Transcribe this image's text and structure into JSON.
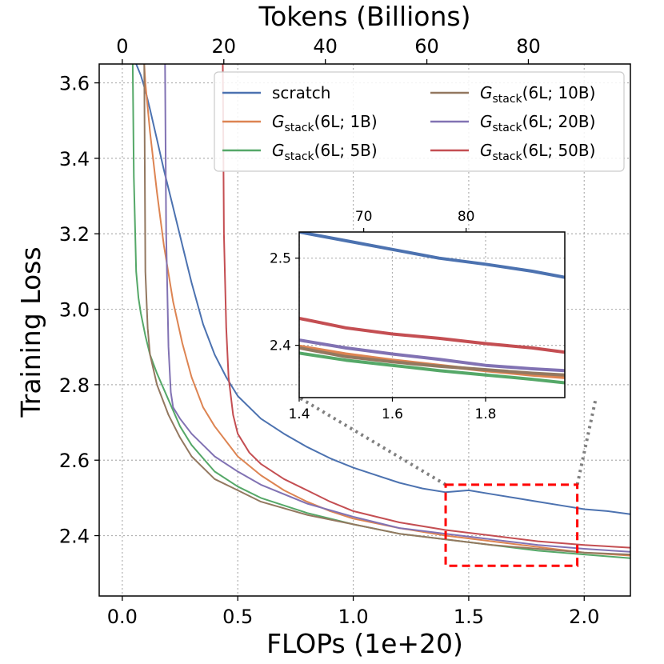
{
  "chart_data": {
    "type": "line",
    "xlabel": "FLOPs (1e+20)",
    "x2label": "Tokens (Billions)",
    "ylabel": "Training Loss",
    "xlim": [
      -0.1,
      2.2
    ],
    "ylim": [
      2.24,
      3.65
    ],
    "x_ticks": [
      0.0,
      0.5,
      1.0,
      1.5,
      2.0
    ],
    "x_tick_labels": [
      "0.0",
      "0.5",
      "1.0",
      "1.5",
      "2.0"
    ],
    "y_ticks": [
      2.4,
      2.6,
      2.8,
      3.0,
      3.2,
      3.4,
      3.6
    ],
    "y_tick_labels": [
      "2.4",
      "2.6",
      "2.8",
      "3.0",
      "3.2",
      "3.4",
      "3.6"
    ],
    "tokens_per_flop_unit": 45.5,
    "top_ticks": [
      0,
      20,
      40,
      60,
      80
    ],
    "top_tick_labels": [
      "0",
      "20",
      "40",
      "60",
      "80"
    ],
    "grid": true,
    "legend_position": "top-right",
    "series": [
      {
        "name": "scratch",
        "label_main": "scratch",
        "label_sub": "",
        "label_arg": "",
        "color": "#4c72b0",
        "x": [
          0.06,
          0.08,
          0.1,
          0.12,
          0.15,
          0.18,
          0.22,
          0.26,
          0.3,
          0.35,
          0.4,
          0.45,
          0.5,
          0.6,
          0.7,
          0.8,
          0.9,
          1.0,
          1.1,
          1.2,
          1.3,
          1.4,
          1.5,
          1.6,
          1.7,
          1.8,
          1.9,
          2.0,
          2.1,
          2.2
        ],
        "y": [
          3.65,
          3.62,
          3.58,
          3.53,
          3.45,
          3.37,
          3.27,
          3.17,
          3.07,
          2.96,
          2.88,
          2.82,
          2.77,
          2.71,
          2.67,
          2.635,
          2.605,
          2.58,
          2.56,
          2.54,
          2.525,
          2.515,
          2.52,
          2.51,
          2.5,
          2.49,
          2.48,
          2.47,
          2.465,
          2.457
        ]
      },
      {
        "name": "G_stack(6L;1B)",
        "label_main": "G",
        "label_sub": "stack",
        "label_arg": "(6L; 1B)",
        "color": "#dd8452",
        "x": [
          0.095,
          0.1,
          0.12,
          0.15,
          0.18,
          0.22,
          0.26,
          0.3,
          0.35,
          0.4,
          0.5,
          0.6,
          0.7,
          0.8,
          0.9,
          1.0,
          1.2,
          1.4,
          1.6,
          1.8,
          2.0,
          2.2
        ],
        "y": [
          3.65,
          3.6,
          3.47,
          3.31,
          3.17,
          3.02,
          2.91,
          2.82,
          2.74,
          2.69,
          2.61,
          2.56,
          2.52,
          2.49,
          2.465,
          2.445,
          2.42,
          2.4,
          2.385,
          2.37,
          2.355,
          2.347
        ]
      },
      {
        "name": "G_stack(6L;5B)",
        "label_main": "G",
        "label_sub": "stack",
        "label_arg": "(6L; 5B)",
        "color": "#55a868",
        "x": [
          0.045,
          0.05,
          0.06,
          0.07,
          0.08,
          0.1,
          0.12,
          0.15,
          0.2,
          0.25,
          0.3,
          0.4,
          0.5,
          0.6,
          0.8,
          1.0,
          1.2,
          1.4,
          1.6,
          1.8,
          2.0,
          2.2
        ],
        "y": [
          3.65,
          3.35,
          3.1,
          3.03,
          2.99,
          2.93,
          2.88,
          2.83,
          2.76,
          2.69,
          2.64,
          2.57,
          2.53,
          2.5,
          2.46,
          2.43,
          2.405,
          2.39,
          2.375,
          2.36,
          2.35,
          2.34
        ]
      },
      {
        "name": "G_stack(6L;10B)",
        "label_main": "G",
        "label_sub": "stack",
        "label_arg": "(6L; 10B)",
        "color": "#937860",
        "x": [
          0.095,
          0.1,
          0.11,
          0.12,
          0.15,
          0.2,
          0.25,
          0.3,
          0.4,
          0.5,
          0.6,
          0.8,
          1.0,
          1.2,
          1.4,
          1.6,
          1.8,
          2.0,
          2.2
        ],
        "y": [
          3.65,
          3.1,
          2.95,
          2.88,
          2.8,
          2.72,
          2.66,
          2.61,
          2.55,
          2.52,
          2.49,
          2.455,
          2.43,
          2.405,
          2.39,
          2.375,
          2.365,
          2.355,
          2.35
        ]
      },
      {
        "name": "G_stack(6L;20B)",
        "label_main": "G",
        "label_sub": "stack",
        "label_arg": "(6L; 20B)",
        "color": "#8172b3",
        "x": [
          0.185,
          0.19,
          0.2,
          0.21,
          0.22,
          0.25,
          0.3,
          0.35,
          0.4,
          0.5,
          0.6,
          0.8,
          1.0,
          1.2,
          1.4,
          1.6,
          1.8,
          2.0,
          2.2
        ],
        "y": [
          3.65,
          3.2,
          2.9,
          2.78,
          2.74,
          2.71,
          2.67,
          2.64,
          2.61,
          2.57,
          2.535,
          2.485,
          2.45,
          2.42,
          2.405,
          2.39,
          2.375,
          2.365,
          2.357
        ]
      },
      {
        "name": "G_stack(6L;50B)",
        "label_main": "G",
        "label_sub": "stack",
        "label_arg": "(6L; 50B)",
        "color": "#c44e52",
        "x": [
          0.435,
          0.44,
          0.45,
          0.46,
          0.48,
          0.5,
          0.55,
          0.6,
          0.7,
          0.8,
          0.9,
          1.0,
          1.2,
          1.4,
          1.6,
          1.8,
          2.0,
          2.2
        ],
        "y": [
          3.65,
          3.2,
          2.95,
          2.82,
          2.72,
          2.67,
          2.62,
          2.59,
          2.55,
          2.52,
          2.49,
          2.465,
          2.435,
          2.415,
          2.4,
          2.385,
          2.375,
          2.368
        ]
      }
    ],
    "zoom_box": {
      "xlim": [
        1.4,
        1.97
      ],
      "ylim": [
        2.32,
        2.535
      ]
    },
    "inset": {
      "xlim": [
        1.4,
        1.97
      ],
      "ylim": [
        2.34,
        2.53
      ],
      "x_ticks": [
        1.4,
        1.6,
        1.8
      ],
      "x_tick_labels": [
        "1.4",
        "1.6",
        "1.8"
      ],
      "y_ticks": [
        2.4,
        2.5
      ],
      "y_tick_labels": [
        "2.4",
        "2.5"
      ],
      "top_ticks": [
        70,
        80
      ],
      "top_tick_labels": [
        "70",
        "80"
      ],
      "series": [
        {
          "name": "scratch",
          "color": "#4c72b0",
          "x": [
            1.4,
            1.5,
            1.6,
            1.7,
            1.8,
            1.9,
            1.97
          ],
          "y": [
            2.53,
            2.52,
            2.51,
            2.5,
            2.493,
            2.485,
            2.478
          ]
        },
        {
          "name": "G_stack(6L;50B)",
          "color": "#c44e52",
          "x": [
            1.4,
            1.5,
            1.6,
            1.7,
            1.8,
            1.9,
            1.97
          ],
          "y": [
            2.431,
            2.42,
            2.413,
            2.408,
            2.402,
            2.397,
            2.392
          ]
        },
        {
          "name": "G_stack(6L;20B)",
          "color": "#8172b3",
          "x": [
            1.4,
            1.5,
            1.6,
            1.7,
            1.8,
            1.9,
            1.97
          ],
          "y": [
            2.406,
            2.397,
            2.39,
            2.384,
            2.377,
            2.373,
            2.371
          ]
        },
        {
          "name": "G_stack(6L;1B)",
          "color": "#dd8452",
          "x": [
            1.4,
            1.5,
            1.6,
            1.7,
            1.8,
            1.9,
            1.97
          ],
          "y": [
            2.399,
            2.39,
            2.383,
            2.377,
            2.371,
            2.366,
            2.363
          ]
        },
        {
          "name": "G_stack(6L;10B)",
          "color": "#937860",
          "x": [
            1.4,
            1.5,
            1.6,
            1.7,
            1.8,
            1.9,
            1.97
          ],
          "y": [
            2.397,
            2.387,
            2.381,
            2.376,
            2.372,
            2.368,
            2.366
          ]
        },
        {
          "name": "G_stack(6L;5B)",
          "color": "#55a868",
          "x": [
            1.4,
            1.5,
            1.6,
            1.7,
            1.8,
            1.9,
            1.97
          ],
          "y": [
            2.391,
            2.383,
            2.377,
            2.371,
            2.366,
            2.361,
            2.357
          ]
        }
      ]
    }
  }
}
